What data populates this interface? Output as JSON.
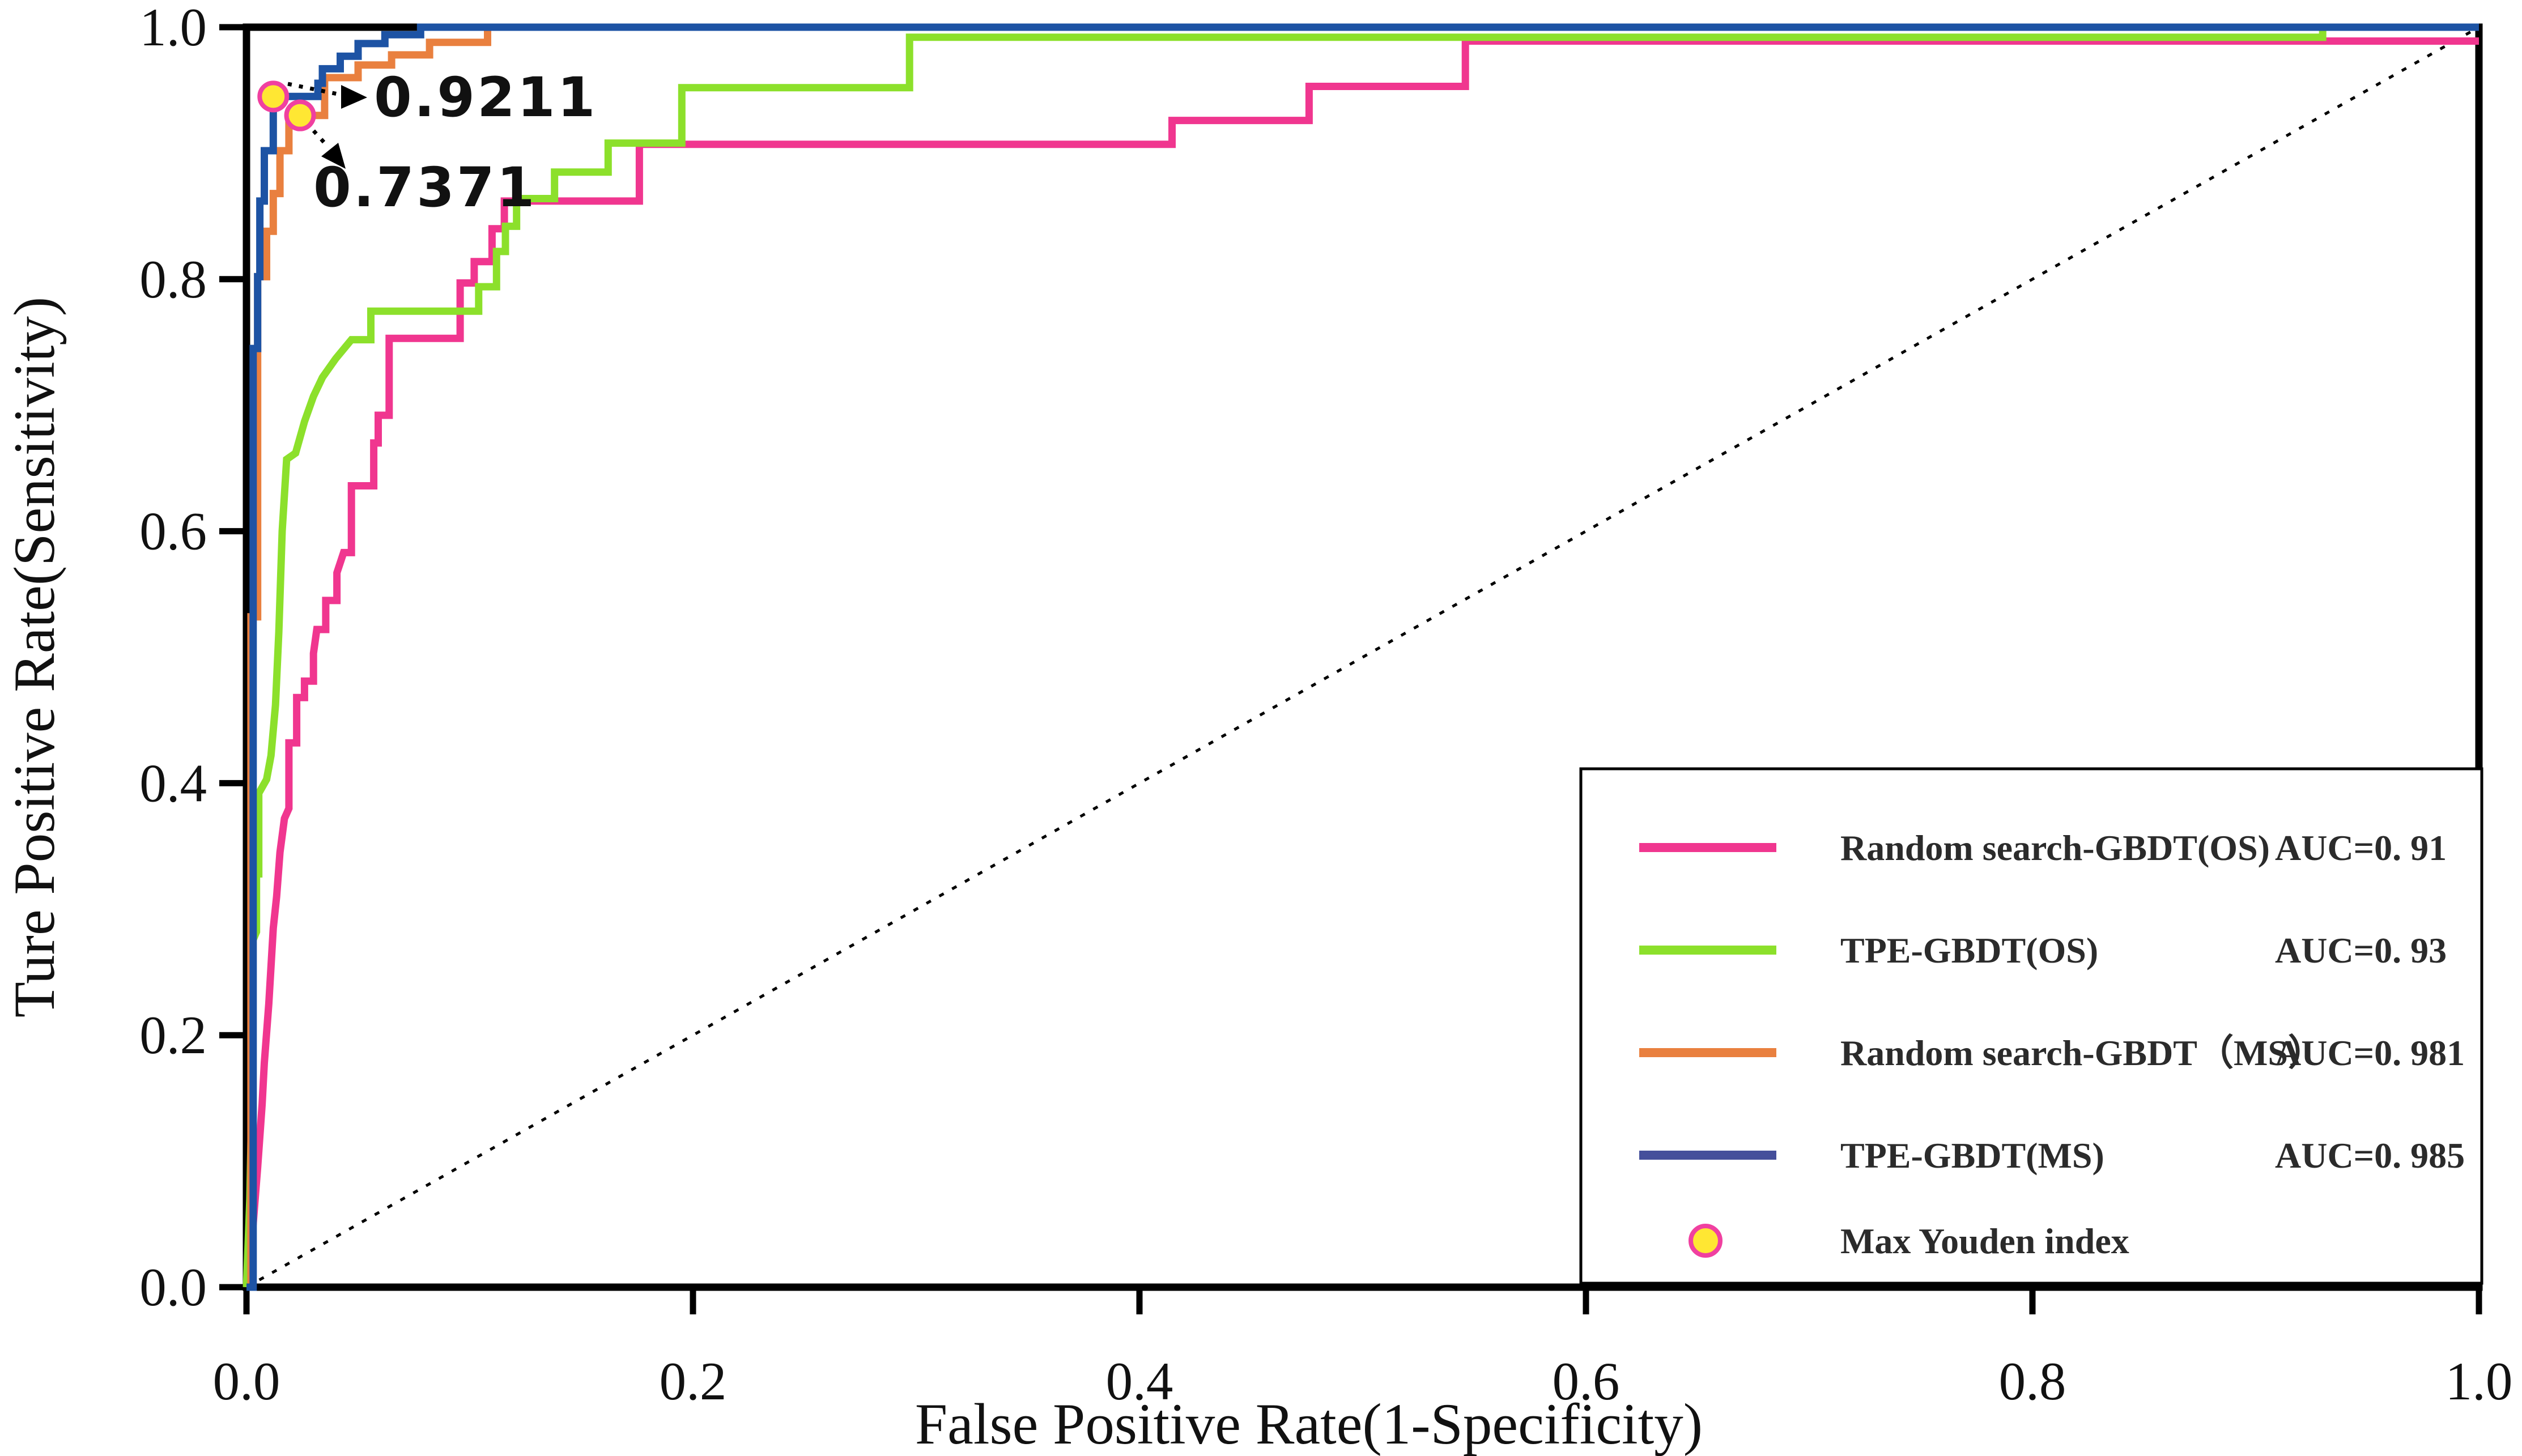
{
  "figure": {
    "background": "#ffffff"
  },
  "chart_data": {
    "type": "line",
    "subtype": "roc-curve",
    "title": "",
    "xlabel": "False Positive Rate(1-Specificity)",
    "ylabel": "Ture Positive Rate(Sensitivity)",
    "xlim": [
      0,
      1
    ],
    "ylim": [
      0,
      1
    ],
    "grid": false,
    "x_tick_values": [
      0.0,
      0.2,
      0.4,
      0.6,
      0.8,
      1.0
    ],
    "y_tick_values": [
      0.0,
      0.2,
      0.4,
      0.6,
      0.8,
      1.0
    ],
    "x_tick_labels": [
      "0.0",
      "0.2",
      "0.4",
      "0.6",
      "0.8",
      "1.0"
    ],
    "y_tick_labels": [
      "0.0",
      "0.2",
      "0.4",
      "0.6",
      "0.8",
      "1.0"
    ],
    "reference_line": {
      "name": "chance-diagonal",
      "from": [
        0,
        0
      ],
      "to": [
        1,
        1
      ],
      "style": "dotted",
      "color": "#000000"
    },
    "series": [
      {
        "name": "Random search-GBDT(OS)",
        "auc_label": "AUC=0. 91",
        "color": "#F0368F",
        "points": [
          [
            0,
            0
          ],
          [
            0.003,
            0.05
          ],
          [
            0.005,
            0.095
          ],
          [
            0.007,
            0.145
          ],
          [
            0.008,
            0.178
          ],
          [
            0.01,
            0.225
          ],
          [
            0.012,
            0.285
          ],
          [
            0.0135,
            0.31
          ],
          [
            0.015,
            0.345
          ],
          [
            0.017,
            0.372
          ],
          [
            0.019,
            0.38
          ],
          [
            0.019,
            0.432
          ],
          [
            0.0225,
            0.432
          ],
          [
            0.0225,
            0.468
          ],
          [
            0.026,
            0.468
          ],
          [
            0.026,
            0.481
          ],
          [
            0.03,
            0.481
          ],
          [
            0.03,
            0.503
          ],
          [
            0.0315,
            0.522
          ],
          [
            0.0355,
            0.522
          ],
          [
            0.0355,
            0.545
          ],
          [
            0.0405,
            0.545
          ],
          [
            0.0405,
            0.567
          ],
          [
            0.0435,
            0.583
          ],
          [
            0.047,
            0.583
          ],
          [
            0.047,
            0.636
          ],
          [
            0.057,
            0.636
          ],
          [
            0.057,
            0.67
          ],
          [
            0.059,
            0.67
          ],
          [
            0.059,
            0.692
          ],
          [
            0.0639,
            0.692
          ],
          [
            0.0639,
            0.753
          ],
          [
            0.0957,
            0.753
          ],
          [
            0.0957,
            0.797
          ],
          [
            0.102,
            0.797
          ],
          [
            0.102,
            0.814
          ],
          [
            0.11,
            0.814
          ],
          [
            0.11,
            0.84
          ],
          [
            0.1155,
            0.84
          ],
          [
            0.1155,
            0.862
          ],
          [
            0.176,
            0.862
          ],
          [
            0.176,
            0.907
          ],
          [
            0.4146,
            0.907
          ],
          [
            0.4146,
            0.926
          ],
          [
            0.476,
            0.926
          ],
          [
            0.476,
            0.953
          ],
          [
            0.546,
            0.953
          ],
          [
            0.546,
            0.989
          ],
          [
            1,
            0.989
          ]
        ]
      },
      {
        "name": "TPE-GBDT(OS)",
        "auc_label": "AUC=0. 93",
        "color": "#8CE02B",
        "points": [
          [
            0,
            0
          ],
          [
            0.0015,
            0.07
          ],
          [
            0.002,
            0.115
          ],
          [
            0.0028,
            0.115
          ],
          [
            0.0028,
            0.275
          ],
          [
            0.0045,
            0.282
          ],
          [
            0.0045,
            0.328
          ],
          [
            0.0055,
            0.328
          ],
          [
            0.0055,
            0.392
          ],
          [
            0.009,
            0.403
          ],
          [
            0.011,
            0.422
          ],
          [
            0.013,
            0.462
          ],
          [
            0.0145,
            0.52
          ],
          [
            0.016,
            0.6
          ],
          [
            0.018,
            0.657
          ],
          [
            0.022,
            0.662
          ],
          [
            0.026,
            0.687
          ],
          [
            0.03,
            0.707
          ],
          [
            0.034,
            0.722
          ],
          [
            0.04,
            0.737
          ],
          [
            0.047,
            0.752
          ],
          [
            0.0557,
            0.752
          ],
          [
            0.0557,
            0.7746
          ],
          [
            0.104,
            0.7746
          ],
          [
            0.104,
            0.794
          ],
          [
            0.112,
            0.794
          ],
          [
            0.112,
            0.822
          ],
          [
            0.116,
            0.822
          ],
          [
            0.116,
            0.842
          ],
          [
            0.121,
            0.842
          ],
          [
            0.121,
            0.864
          ],
          [
            0.138,
            0.864
          ],
          [
            0.138,
            0.885
          ],
          [
            0.162,
            0.885
          ],
          [
            0.162,
            0.908
          ],
          [
            0.195,
            0.908
          ],
          [
            0.195,
            0.952
          ],
          [
            0.297,
            0.952
          ],
          [
            0.297,
            0.992
          ],
          [
            0.93,
            0.992
          ],
          [
            0.93,
            1
          ],
          [
            1,
            1
          ]
        ]
      },
      {
        "name": "Random search-GBDT（MS）",
        "auc_label": "AUC=0. 981",
        "color": "#E9803F",
        "points": [
          [
            0,
            0
          ],
          [
            0.002,
            0
          ],
          [
            0.002,
            0.532
          ],
          [
            0.005,
            0.532
          ],
          [
            0.005,
            0.587
          ],
          [
            0.005,
            0.802
          ],
          [
            0.009,
            0.802
          ],
          [
            0.009,
            0.838
          ],
          [
            0.012,
            0.838
          ],
          [
            0.012,
            0.868
          ],
          [
            0.015,
            0.868
          ],
          [
            0.015,
            0.902
          ],
          [
            0.019,
            0.902
          ],
          [
            0.019,
            0.93
          ],
          [
            0.035,
            0.93
          ],
          [
            0.035,
            0.96
          ],
          [
            0.05,
            0.96
          ],
          [
            0.05,
            0.97
          ],
          [
            0.065,
            0.97
          ],
          [
            0.065,
            0.978
          ],
          [
            0.082,
            0.978
          ],
          [
            0.082,
            0.988
          ],
          [
            0.108,
            0.988
          ],
          [
            0.108,
            1
          ],
          [
            1,
            1
          ]
        ]
      },
      {
        "name": "TPE-GBDT(MS)",
        "auc_label": "AUC=0. 985",
        "color": "#1D53A4",
        "points": [
          [
            0,
            0
          ],
          [
            0.003,
            0
          ],
          [
            0.003,
            0.745
          ],
          [
            0.005,
            0.745
          ],
          [
            0.005,
            0.802
          ],
          [
            0.006,
            0.802
          ],
          [
            0.006,
            0.862
          ],
          [
            0.008,
            0.862
          ],
          [
            0.008,
            0.902
          ],
          [
            0.012,
            0.902
          ],
          [
            0.012,
            0.945
          ],
          [
            0.032,
            0.945
          ],
          [
            0.032,
            0.9555
          ],
          [
            0.034,
            0.9555
          ],
          [
            0.034,
            0.967
          ],
          [
            0.042,
            0.967
          ],
          [
            0.042,
            0.977
          ],
          [
            0.05,
            0.977
          ],
          [
            0.05,
            0.987
          ],
          [
            0.062,
            0.987
          ],
          [
            0.062,
            0.994
          ],
          [
            0.078,
            0.994
          ],
          [
            0.078,
            1
          ],
          [
            1,
            1
          ]
        ]
      }
    ],
    "youden_markers": [
      {
        "series": "TPE-GBDT(MS)",
        "cutoff_label": "0.9211",
        "x": 0.012,
        "y": 0.945,
        "label_color": "#1E4F9E",
        "marker_fill": "#FFE733",
        "marker_stroke": "#F040A0"
      },
      {
        "series": "Random search-GBDT（MS）",
        "cutoff_label": "0.7371",
        "x": 0.024,
        "y": 0.93,
        "label_color": "#E8743E",
        "marker_fill": "#FFE733",
        "marker_stroke": "#F040A0"
      }
    ],
    "legend": {
      "position": "lower-right",
      "items": [
        {
          "label": "Random search-GBDT(OS)",
          "auc": "AUC=0. 91",
          "swatch": "line",
          "color": "#F0368F"
        },
        {
          "label": "TPE-GBDT(OS)",
          "auc": "AUC=0. 93",
          "swatch": "line",
          "color": "#8CE02B"
        },
        {
          "label": "Random search-GBDT（MS）",
          "auc": "AUC=0. 981",
          "swatch": "line",
          "color": "#E9803F"
        },
        {
          "label": "TPE-GBDT(MS)",
          "auc": "AUC=0. 985",
          "swatch": "line",
          "color": "#454F9B"
        },
        {
          "label": "Max Youden index",
          "auc": "",
          "swatch": "circle",
          "color": "#FFE733",
          "swatch_stroke": "#F040A0"
        }
      ]
    }
  }
}
